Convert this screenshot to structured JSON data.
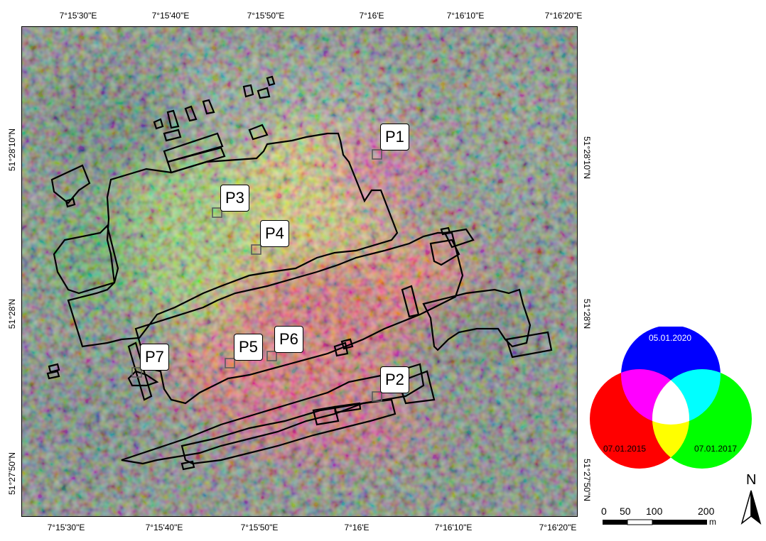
{
  "map": {
    "axis_labels": {
      "top": [
        "7°15'30\"E",
        "7°15'40\"E",
        "7°15'50\"E",
        "7°16'E",
        "7°16'10\"E",
        "7°16'20\"E"
      ],
      "bottom": [
        "7°15'30\"E",
        "7°15'40\"E",
        "7°15'50\"E",
        "7°16'E",
        "7°16'10\"E",
        "7°16'20\"E"
      ],
      "left": [
        "51°28'10\"N",
        "51°28'N",
        "51°27'50\"N"
      ],
      "right": [
        "51°28'10\"N",
        "51°28'N",
        "51°27'50\"N"
      ]
    },
    "points": [
      "P1",
      "P2",
      "P3",
      "P4",
      "P5",
      "P6",
      "P7"
    ]
  },
  "legend": {
    "blue": "05.01.2020",
    "red": "07.01.2015",
    "green": "07.01.2017",
    "colors": {
      "blue": "#0000ff",
      "red": "#ff0000",
      "green": "#00ff00"
    }
  },
  "scalebar": {
    "ticks": [
      "0",
      "50",
      "100",
      "200"
    ],
    "unit": "m"
  },
  "north": {
    "label": "N"
  }
}
